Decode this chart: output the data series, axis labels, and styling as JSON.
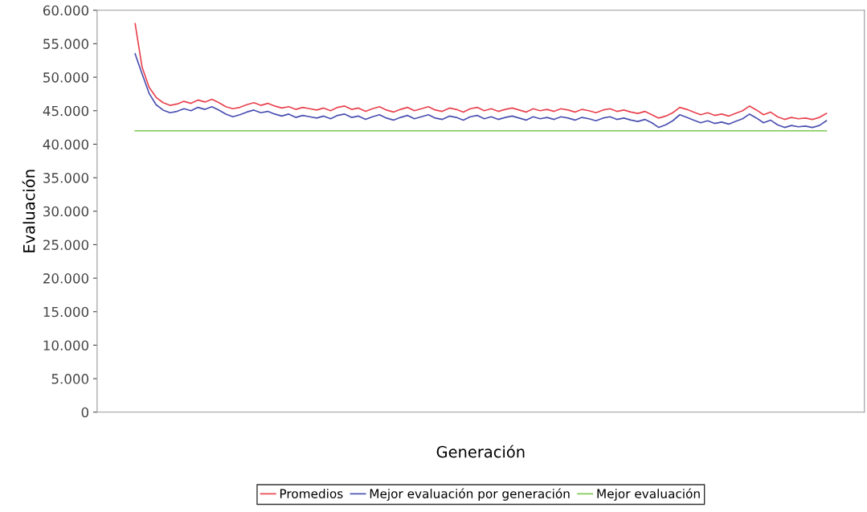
{
  "chart_data": {
    "type": "line",
    "xlabel": "Generación",
    "ylabel": "Evaluación",
    "categories": [
      null,
      null,
      null,
      null,
      null,
      null,
      null,
      null,
      null,
      null,
      null,
      null,
      null,
      null,
      null,
      null,
      null,
      null,
      null,
      null,
      null,
      null,
      null,
      null,
      null,
      null,
      null,
      null,
      null,
      null,
      null,
      null,
      null,
      null,
      null,
      null,
      null,
      null,
      null,
      null,
      null,
      null,
      null,
      null,
      null,
      null,
      null,
      null,
      null,
      null,
      null,
      null,
      null,
      null,
      null,
      null,
      null,
      null,
      null,
      null,
      null,
      null,
      null,
      null,
      null,
      null,
      null,
      null,
      null,
      null,
      null,
      null,
      null,
      null,
      null,
      null,
      null,
      null,
      null,
      null,
      null,
      null,
      null,
      null,
      null,
      null,
      null,
      null,
      null,
      null,
      null,
      null,
      null,
      null,
      null,
      null,
      null,
      null,
      null,
      null
    ],
    "series": [
      {
        "name": "Promedios",
        "color": "#e8434f",
        "values": [
          58000,
          51500,
          48500,
          47000,
          46200,
          45800,
          46000,
          46400,
          46100,
          46600,
          46300,
          46700,
          46200,
          45600,
          45300,
          45500,
          45900,
          46200,
          45800,
          46100,
          45700,
          45400,
          45600,
          45200,
          45500,
          45300,
          45100,
          45400,
          45000,
          45500,
          45700,
          45200,
          45400,
          44900,
          45300,
          45600,
          45100,
          44800,
          45200,
          45500,
          45000,
          45300,
          45600,
          45100,
          44900,
          45400,
          45200,
          44800,
          45300,
          45500,
          45000,
          45300,
          44900,
          45200,
          45400,
          45100,
          44800,
          45300,
          45000,
          45200,
          44900,
          45300,
          45100,
          44800,
          45200,
          45000,
          44700,
          45100,
          45300,
          44900,
          45100,
          44800,
          44600,
          44900,
          44400,
          43900,
          44200,
          44700,
          45500,
          45200,
          44800,
          44400,
          44700,
          44300,
          44500,
          44200,
          44600,
          45000,
          45700,
          45100,
          44400,
          44800,
          44100,
          43700,
          44000,
          43800,
          43900,
          43700,
          44000,
          44600
        ]
      },
      {
        "name": "Mejor evaluación por generación",
        "color": "#4a4fb0",
        "values": [
          53500,
          50500,
          47600,
          45900,
          45100,
          44700,
          44900,
          45300,
          45000,
          45500,
          45200,
          45600,
          45100,
          44500,
          44100,
          44400,
          44800,
          45100,
          44700,
          44900,
          44500,
          44200,
          44500,
          44000,
          44300,
          44100,
          43900,
          44200,
          43800,
          44300,
          44500,
          44000,
          44200,
          43700,
          44100,
          44400,
          43900,
          43600,
          44000,
          44300,
          43800,
          44100,
          44400,
          43900,
          43700,
          44200,
          44000,
          43600,
          44100,
          44300,
          43800,
          44100,
          43700,
          44000,
          44200,
          43900,
          43600,
          44100,
          43800,
          44000,
          43700,
          44100,
          43900,
          43600,
          44000,
          43800,
          43500,
          43900,
          44100,
          43700,
          43900,
          43600,
          43400,
          43700,
          43200,
          42500,
          42900,
          43500,
          44400,
          44000,
          43600,
          43200,
          43500,
          43100,
          43300,
          43000,
          43400,
          43800,
          44500,
          43900,
          43200,
          43600,
          42900,
          42500,
          42800,
          42600,
          42700,
          42500,
          42800,
          43500
        ]
      },
      {
        "name": "Mejor evaluación",
        "color": "#7ec850",
        "values": [
          42000,
          42000,
          42000,
          42000,
          42000,
          42000,
          42000,
          42000,
          42000,
          42000,
          42000,
          42000,
          42000,
          42000,
          42000,
          42000,
          42000,
          42000,
          42000,
          42000,
          42000,
          42000,
          42000,
          42000,
          42000,
          42000,
          42000,
          42000,
          42000,
          42000,
          42000,
          42000,
          42000,
          42000,
          42000,
          42000,
          42000,
          42000,
          42000,
          42000,
          42000,
          42000,
          42000,
          42000,
          42000,
          42000,
          42000,
          42000,
          42000,
          42000,
          42000,
          42000,
          42000,
          42000,
          42000,
          42000,
          42000,
          42000,
          42000,
          42000,
          42000,
          42000,
          42000,
          42000,
          42000,
          42000,
          42000,
          42000,
          42000,
          42000,
          42000,
          42000,
          42000,
          42000,
          42000,
          42000,
          42000,
          42000,
          42000,
          42000,
          42000,
          42000,
          42000,
          42000,
          42000,
          42000,
          42000,
          42000,
          42000,
          42000,
          42000,
          42000,
          42000,
          42000,
          42000,
          42000,
          42000,
          42000,
          42000,
          42000
        ]
      }
    ],
    "ylim": [
      0,
      60000
    ],
    "yticks": [
      {
        "value": 0,
        "label": "0"
      },
      {
        "value": 5000,
        "label": "5.000"
      },
      {
        "value": 10000,
        "label": "10.000"
      },
      {
        "value": 15000,
        "label": "15.000"
      },
      {
        "value": 20000,
        "label": "20.000"
      },
      {
        "value": 25000,
        "label": "25.000"
      },
      {
        "value": 30000,
        "label": "30.000"
      },
      {
        "value": 35000,
        "label": "35.000"
      },
      {
        "value": 40000,
        "label": "40.000"
      },
      {
        "value": 45000,
        "label": "45.000"
      },
      {
        "value": 50000,
        "label": "50.000"
      },
      {
        "value": 55000,
        "label": "55.000"
      },
      {
        "value": 60000,
        "label": "60.000"
      }
    ],
    "tick_labels": "y",
    "grid": false,
    "legend": "bottom",
    "marker": "none",
    "line_style": "solid"
  }
}
